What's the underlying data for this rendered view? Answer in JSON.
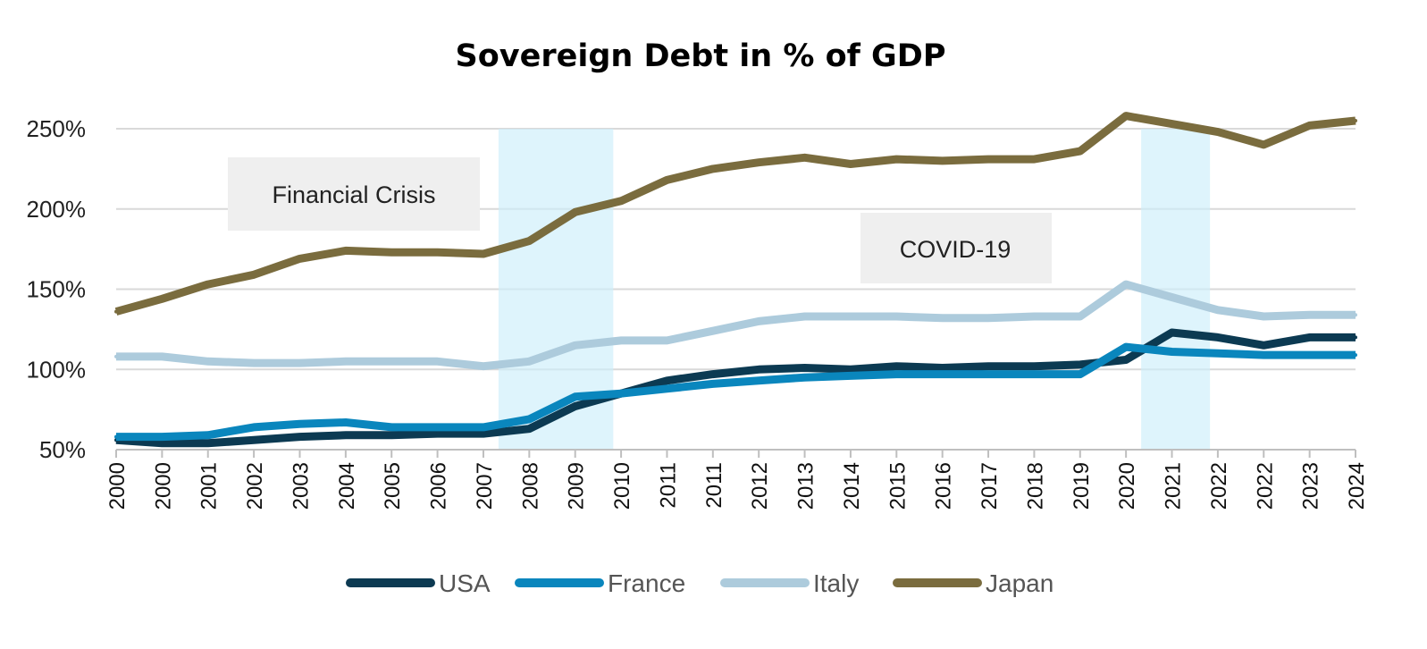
{
  "chart_data": {
    "type": "line",
    "title": "Sovereign Debt in % of GDP",
    "xlabel": "",
    "ylabel": "",
    "ylim": [
      50,
      250
    ],
    "yticks": [
      50,
      100,
      150,
      200,
      250
    ],
    "ytick_labels": [
      "50%",
      "100%",
      "150%",
      "200%",
      "250%"
    ],
    "grid": "horizontal",
    "legend_position": "bottom",
    "x": [
      "2000",
      "2000",
      "2001",
      "2002",
      "2003",
      "2004",
      "2005",
      "2006",
      "2007",
      "2008",
      "2009",
      "2010",
      "2011",
      "2011",
      "2012",
      "2013",
      "2014",
      "2015",
      "2016",
      "2017",
      "2018",
      "2019",
      "2020",
      "2021",
      "2022",
      "2022",
      "2023",
      "2024"
    ],
    "series": [
      {
        "name": "USA",
        "color": "#0c3a52",
        "values": [
          56,
          54,
          54,
          56,
          58,
          59,
          59,
          60,
          60,
          63,
          77,
          85,
          93,
          97,
          100,
          101,
          100,
          102,
          101,
          102,
          102,
          103,
          106,
          123,
          120,
          115,
          120,
          120
        ]
      },
      {
        "name": "France",
        "color": "#0a86bd",
        "values": [
          58,
          58,
          59,
          64,
          66,
          67,
          64,
          64,
          64,
          69,
          83,
          85,
          88,
          91,
          93,
          95,
          96,
          97,
          97,
          97,
          97,
          97,
          114,
          111,
          110,
          109,
          109,
          109
        ]
      },
      {
        "name": "Italy",
        "color": "#adcbdc",
        "values": [
          108,
          108,
          105,
          104,
          104,
          105,
          105,
          105,
          102,
          105,
          115,
          118,
          118,
          124,
          130,
          133,
          133,
          133,
          132,
          132,
          133,
          133,
          153,
          145,
          137,
          133,
          134,
          134
        ]
      },
      {
        "name": "Japan",
        "color": "#7a6c3e",
        "values": [
          136,
          144,
          153,
          159,
          169,
          174,
          173,
          173,
          172,
          180,
          198,
          205,
          218,
          225,
          229,
          232,
          228,
          231,
          230,
          231,
          231,
          236,
          258,
          253,
          248,
          240,
          252,
          255
        ]
      }
    ],
    "annotations": [
      {
        "label": "Financial Crisis",
        "shaded_from": "2007",
        "shaded_to": "2009"
      },
      {
        "label": "COVID-19",
        "shaded_from": "2020",
        "shaded_to": "2021"
      }
    ]
  }
}
